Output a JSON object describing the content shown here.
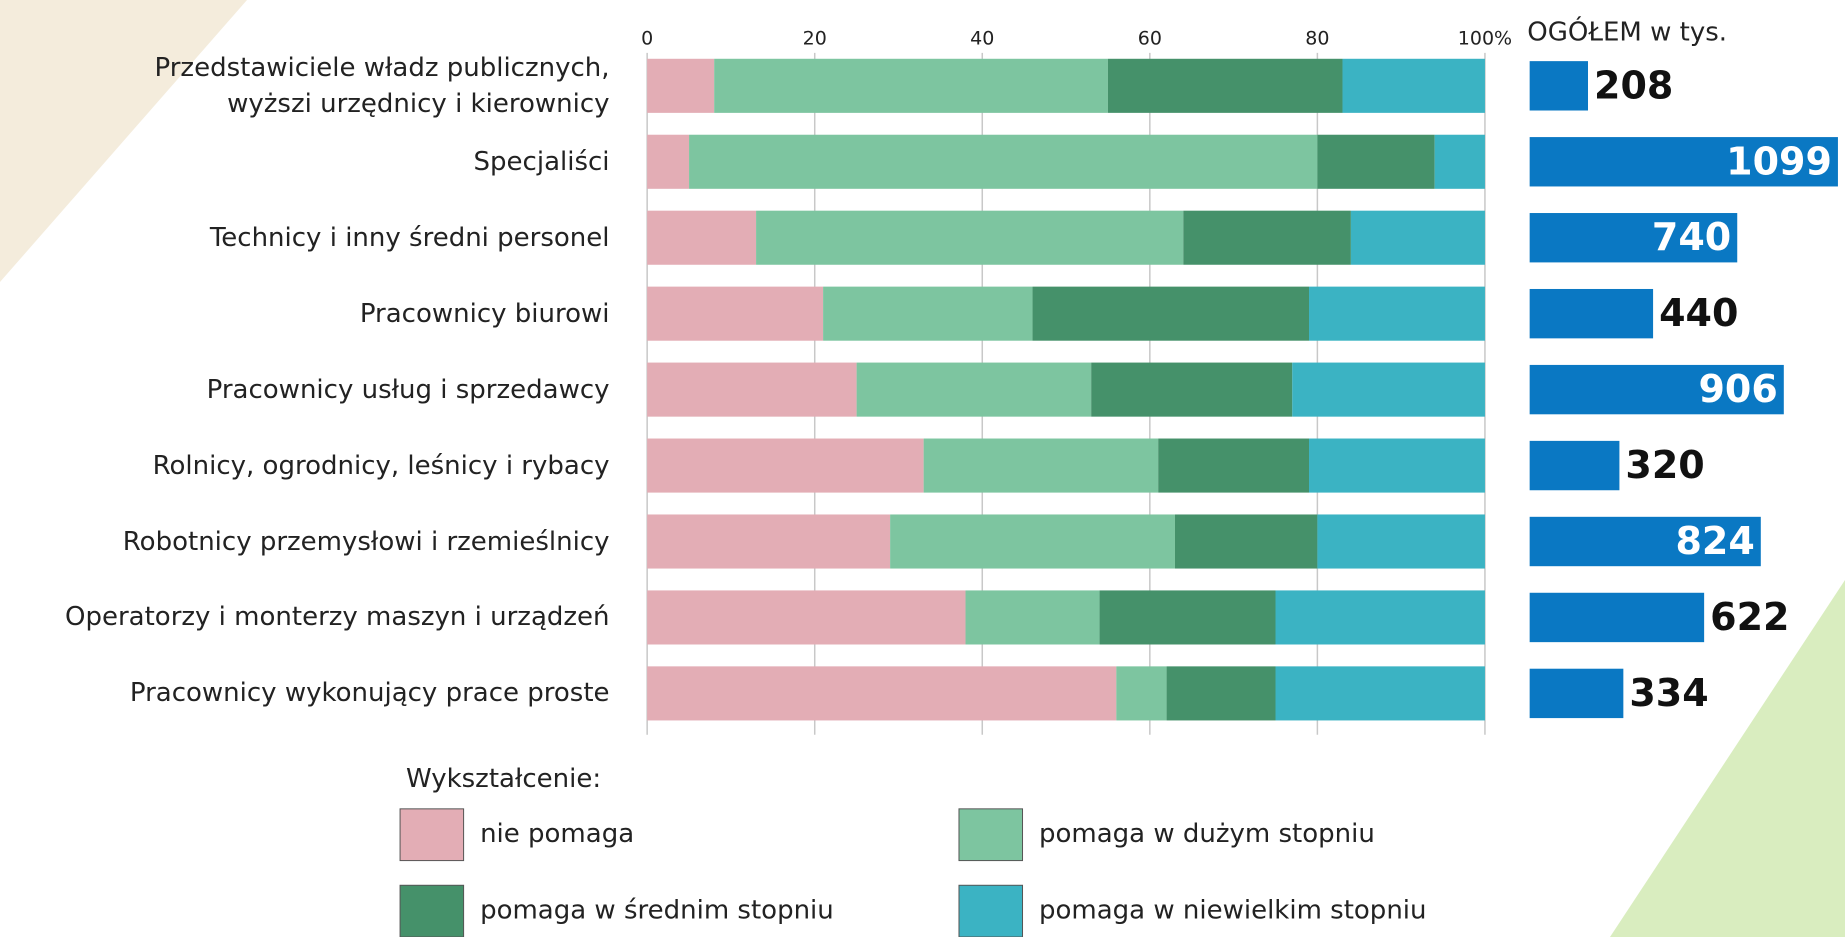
{
  "chart_data": {
    "type": "bar",
    "orientation": "horizontal",
    "stacked": true,
    "categories": [
      "Przedstawiciele władz publicznych,\nwyższi urzędnicy i kierownicy",
      "Specjaliści",
      "Technicy i  inny średni personel",
      "Pracownicy biurowi",
      "Pracownicy usług   i sprzedawcy",
      "Rolnicy, ogrodnicy, leśnicy i rybacy",
      "Robotnicy przemysłowi i rzemieślnicy",
      "Operatorzy i monterzy maszyn  i urządzeń",
      "Pracownicy wykonujący prace proste"
    ],
    "series": [
      {
        "name": "nie pomaga",
        "color": "#e3adb5",
        "values": [
          8,
          5,
          13,
          21,
          25,
          33,
          29,
          38,
          56
        ]
      },
      {
        "name": "pomaga w dużym stopniu",
        "color": "#7dc5a0",
        "values": [
          47,
          75,
          51,
          25,
          28,
          28,
          34,
          16,
          6
        ]
      },
      {
        "name": "pomaga w średnim stopniu",
        "color": "#45916a",
        "values": [
          28,
          14,
          20,
          33,
          24,
          18,
          17,
          21,
          13
        ]
      },
      {
        "name": "pomaga w niewielkim stopniu",
        "color": "#3bb3c3",
        "values": [
          17,
          6,
          16,
          21,
          23,
          21,
          20,
          25,
          25
        ]
      }
    ],
    "xlim": [
      0,
      100
    ],
    "xticks": [
      0,
      20,
      40,
      60,
      80,
      {
        "value": 100,
        "label": "100%"
      }
    ],
    "grid": true,
    "legend_title": "Wykształcenie:",
    "totals": {
      "title": "OGÓŁEM w tys.",
      "color": "#0a78c3",
      "values": [
        208,
        1099,
        740,
        440,
        906,
        320,
        824,
        622,
        334
      ]
    }
  }
}
